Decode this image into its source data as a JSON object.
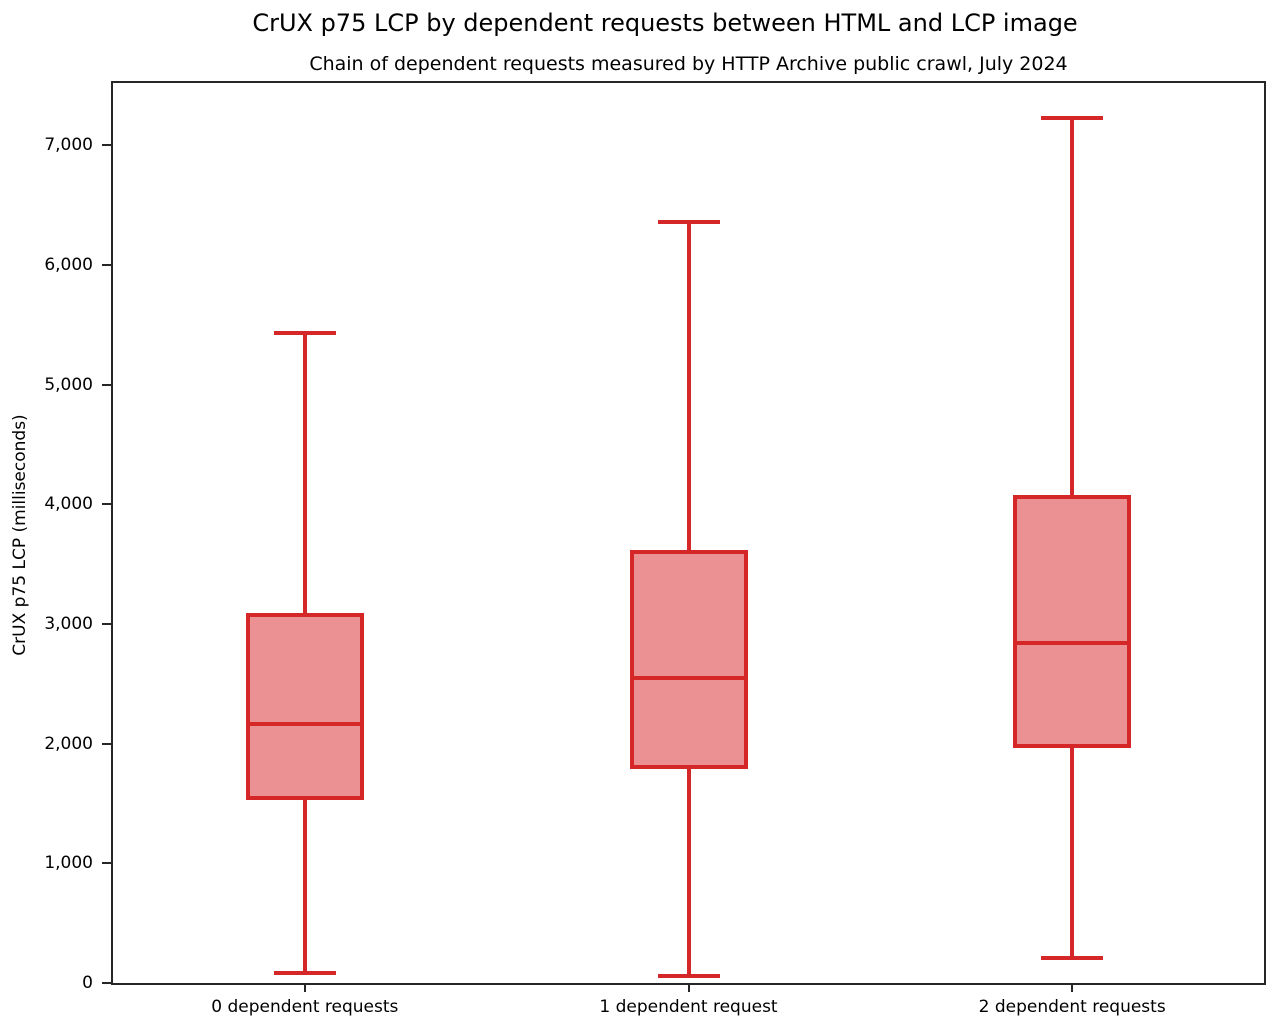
{
  "chart_data": {
    "type": "boxplot",
    "title": "CrUX p75 LCP by dependent requests between HTML and LCP image",
    "subtitle": "Chain of dependent requests measured by HTTP Archive public crawl, July 2024",
    "xlabel": "",
    "ylabel": "CrUX p75 LCP (milliseconds)",
    "categories": [
      "0 dependent requests",
      "1 dependent request",
      "2 dependent requests"
    ],
    "series": [
      {
        "name": "0 dependent requests",
        "whisker_low": 80,
        "q1": 1530,
        "median": 2160,
        "q3": 3090,
        "whisker_high": 5430
      },
      {
        "name": "1 dependent request",
        "whisker_low": 60,
        "q1": 1790,
        "median": 2550,
        "q3": 3620,
        "whisker_high": 6360
      },
      {
        "name": "2 dependent requests",
        "whisker_low": 210,
        "q1": 1960,
        "median": 2840,
        "q3": 4080,
        "whisker_high": 7230
      }
    ],
    "yticks": [
      0,
      1000,
      2000,
      3000,
      4000,
      5000,
      6000,
      7000
    ],
    "ytick_labels": [
      "0",
      "1,000",
      "2,000",
      "3,000",
      "4,000",
      "5,000",
      "6,000",
      "7,000"
    ],
    "ylim": [
      0,
      7520
    ],
    "grid": false,
    "legend_position": "none",
    "colors": {
      "box_edge": "#d62728",
      "box_fill": "#eb9194",
      "axis": "#262626",
      "text": "#000000",
      "background": "#ffffff"
    }
  }
}
